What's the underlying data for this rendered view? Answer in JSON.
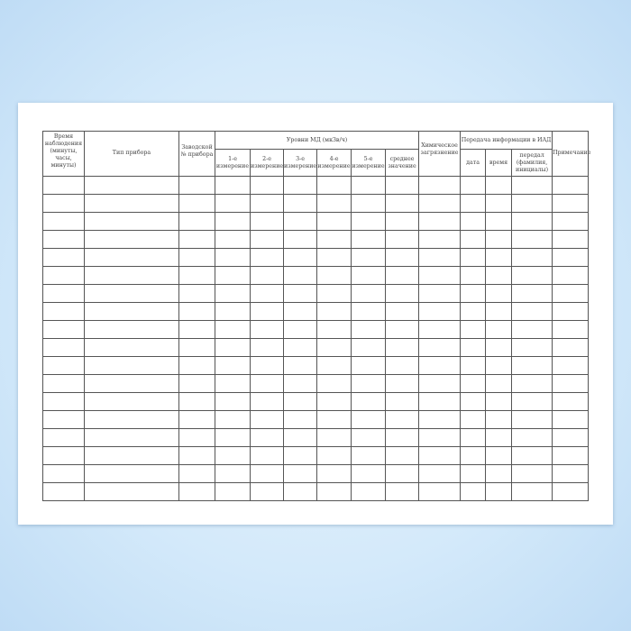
{
  "headers": {
    "time": "Время наблюдения (минуты, часы, минуты)",
    "device_type": "Тип прибора",
    "serial": "Заводской № прибора",
    "levels": "Уровни МД (мкЗв/ч)",
    "m1": "1-е измерение",
    "m2": "2-е измерение",
    "m3": "3-е измерение",
    "m4": "4-е измерение",
    "m5": "5-е измерение",
    "avg": "среднее значение",
    "chem": "Химическое загрязнение",
    "transfer": "Передача информации в ИАД",
    "date": "дата",
    "tm": "время",
    "sender": "передал (фамилия, инициалы)",
    "note": "Примечание"
  },
  "row_count": 18
}
